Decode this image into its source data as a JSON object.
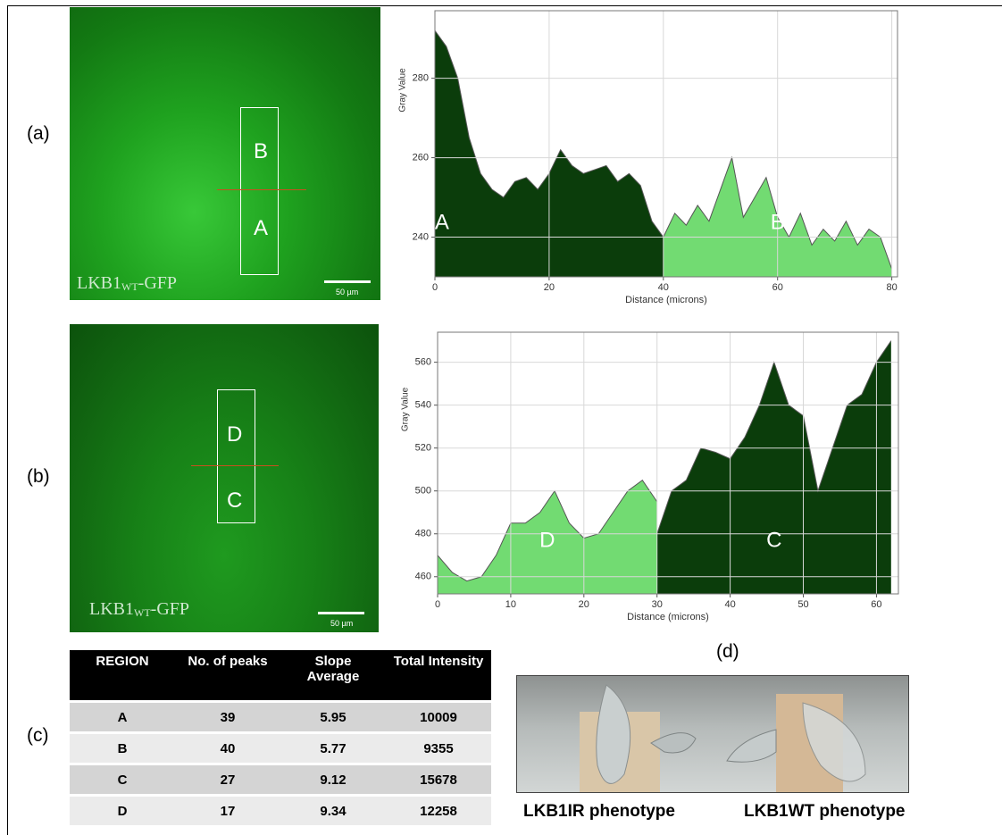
{
  "panel_labels": [
    "(a)",
    "(b)",
    "(c)",
    "(d)"
  ],
  "micrographs": [
    {
      "regions": [
        "B",
        "A"
      ],
      "caption_main": "LKB1",
      "caption_sub": "WT",
      "caption_tail": "-GFP",
      "scale": "50 µm"
    },
    {
      "regions": [
        "D",
        "C"
      ],
      "caption_main": "LKB1",
      "caption_sub": "WT",
      "caption_tail": "-GFP",
      "scale": "50 µm"
    }
  ],
  "chart_data": [
    {
      "type": "area",
      "xlabel": "Distance (microns)",
      "ylabel": "Gray Value",
      "xlim": [
        0,
        81
      ],
      "ylim": [
        230,
        297
      ],
      "xticks": [
        0,
        20,
        40,
        60,
        80
      ],
      "yticks": [
        240,
        260,
        280
      ],
      "grid": true,
      "series": [
        {
          "name": "A",
          "color": "#0b3d0b",
          "x": [
            0,
            2,
            4,
            6,
            8,
            10,
            12,
            14,
            16,
            18,
            20,
            22,
            24,
            26,
            28,
            30,
            32,
            34,
            36,
            38,
            40
          ],
          "values": [
            292,
            288,
            280,
            265,
            256,
            252,
            250,
            254,
            255,
            252,
            256,
            262,
            258,
            256,
            257,
            258,
            254,
            256,
            253,
            244,
            240
          ]
        },
        {
          "name": "B",
          "color": "#72db72",
          "x": [
            40,
            42,
            44,
            46,
            48,
            50,
            52,
            54,
            56,
            58,
            60,
            62,
            64,
            66,
            68,
            70,
            72,
            74,
            76,
            78,
            80
          ],
          "values": [
            240,
            246,
            243,
            248,
            244,
            252,
            260,
            245,
            250,
            255,
            245,
            240,
            246,
            238,
            242,
            239,
            244,
            238,
            242,
            240,
            232
          ]
        }
      ]
    },
    {
      "type": "area",
      "xlabel": "Distance (microns)",
      "ylabel": "Gray Value",
      "xlim": [
        0,
        63
      ],
      "ylim": [
        452,
        574
      ],
      "xticks": [
        0,
        10,
        20,
        30,
        40,
        50,
        60
      ],
      "yticks": [
        460,
        480,
        500,
        520,
        540,
        560
      ],
      "grid": true,
      "series": [
        {
          "name": "D",
          "color": "#72db72",
          "x": [
            0,
            2,
            4,
            6,
            8,
            10,
            12,
            14,
            16,
            18,
            20,
            22,
            24,
            26,
            28,
            30
          ],
          "values": [
            470,
            462,
            458,
            460,
            470,
            485,
            485,
            490,
            500,
            485,
            478,
            480,
            490,
            500,
            505,
            495
          ]
        },
        {
          "name": "C",
          "color": "#0b3d0b",
          "x": [
            30,
            32,
            34,
            36,
            38,
            40,
            42,
            44,
            46,
            48,
            50,
            52,
            54,
            56,
            58,
            60,
            62
          ],
          "values": [
            480,
            500,
            505,
            520,
            518,
            515,
            525,
            540,
            560,
            540,
            535,
            500,
            520,
            540,
            545,
            560,
            570
          ]
        }
      ]
    }
  ],
  "table": {
    "header": [
      "REGION",
      "No. of peaks",
      "Slope Average",
      "Total Intensity"
    ],
    "rows": [
      [
        "A",
        39,
        5.95,
        10009
      ],
      [
        "B",
        40,
        5.77,
        9355
      ],
      [
        "C",
        27,
        9.12,
        15678
      ],
      [
        "D",
        17,
        9.34,
        12258
      ]
    ]
  },
  "photo": {
    "captions": [
      "LKB1IR phenotype",
      "LKB1WT phenotype"
    ]
  }
}
